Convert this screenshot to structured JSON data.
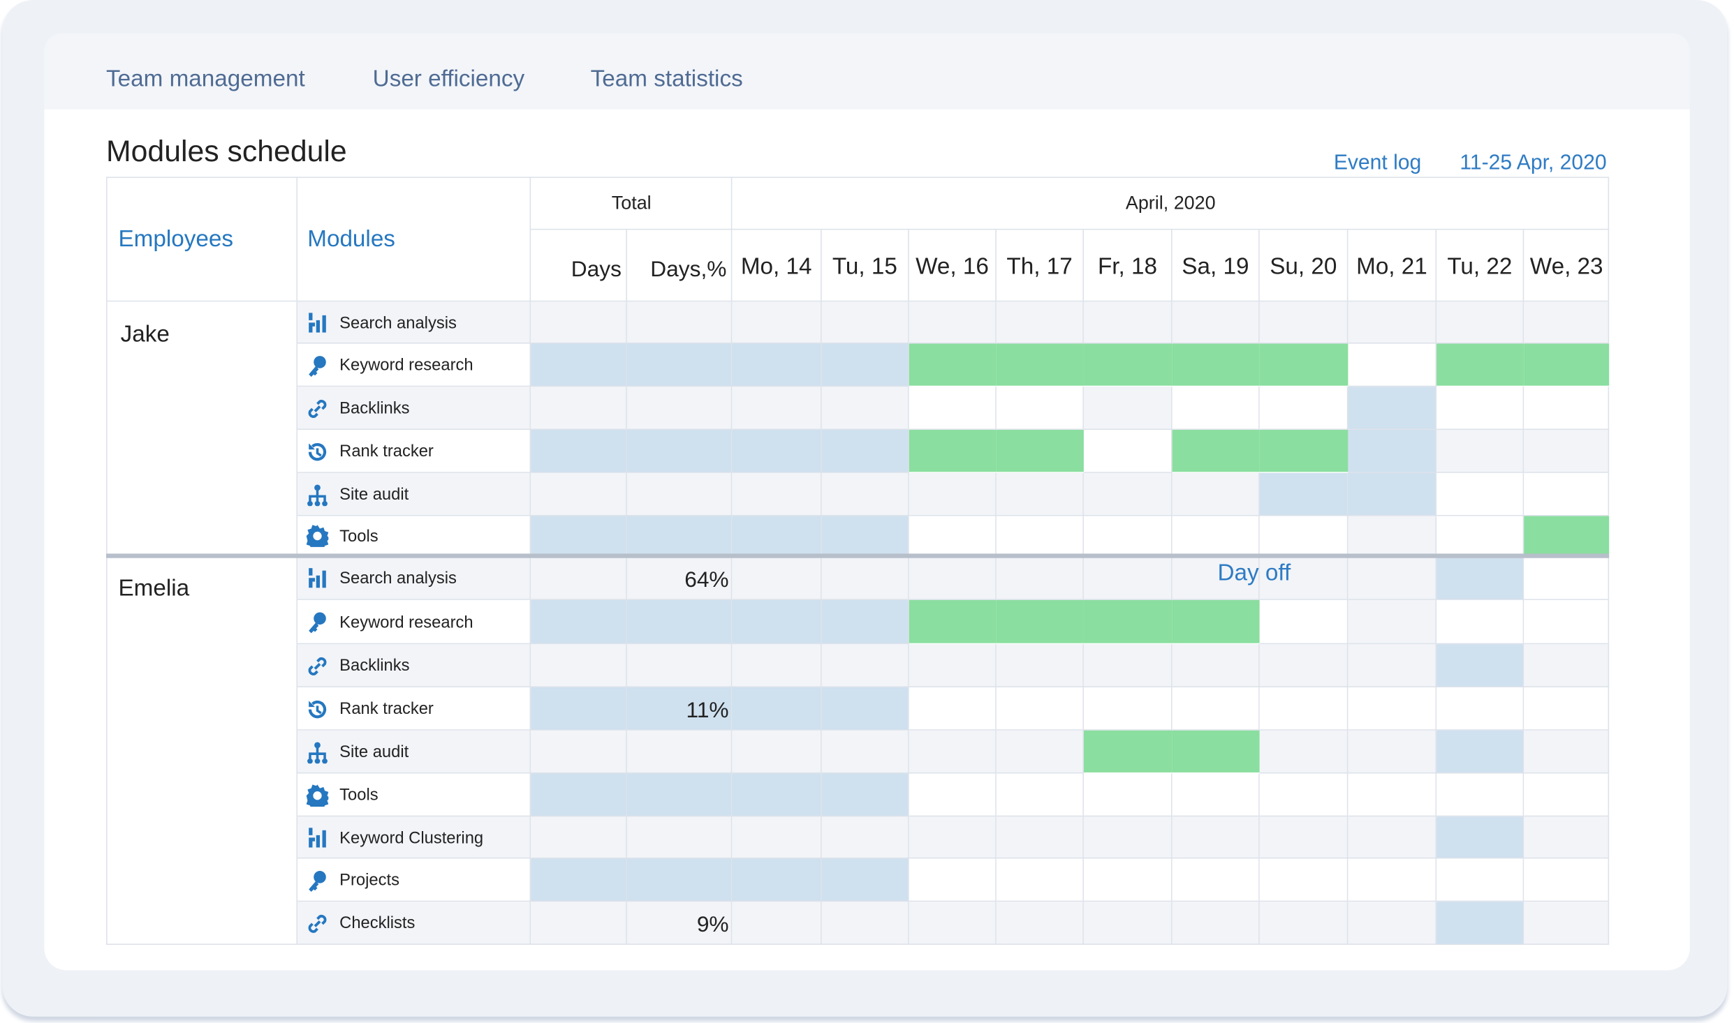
{
  "tabs": [
    "Team management",
    "User efficiency",
    "Team statistics"
  ],
  "title": "Modules schedule",
  "links": [
    "Event log",
    "11-25 Apr, 2020"
  ],
  "table": {
    "headers": {
      "employees": "Employees",
      "modules": "Modules",
      "total": "Total",
      "month": "April, 2020",
      "total_columns": [
        "Days",
        "Days,%"
      ],
      "days": [
        "Mo, 14",
        "Tu, 15",
        "We, 16",
        "Th, 17",
        "Fr, 18",
        "Sa, 19",
        "Su, 20",
        "Mo, 21",
        "Tu, 22",
        "We, 23"
      ]
    },
    "groups": [
      {
        "employee": "Jake",
        "rows": [
          {
            "module": "Search analysis"
          },
          {
            "module": "Keyword research"
          },
          {
            "module": "Backlinks"
          },
          {
            "module": "Rank tracker"
          },
          {
            "module": "Site audit"
          },
          {
            "module": "Tools"
          }
        ]
      },
      {
        "employee": "Emelia",
        "rows": [
          {
            "module": "Search analysis",
            "days_percent": "64%"
          },
          {
            "module": "Keyword research"
          },
          {
            "module": "Backlinks"
          },
          {
            "module": "Rank tracker",
            "days_percent": "11%"
          },
          {
            "module": "Site audit"
          },
          {
            "module": "Tools"
          },
          {
            "module": "Keyword Clustering"
          },
          {
            "module": "Projects"
          },
          {
            "module": "Checklists",
            "days_percent": "9%"
          }
        ]
      }
    ]
  },
  "annotation": "Day off"
}
